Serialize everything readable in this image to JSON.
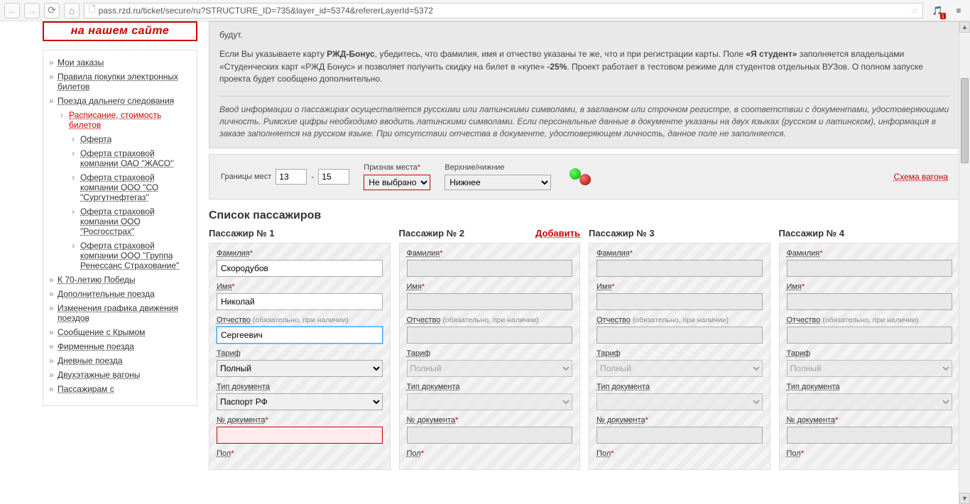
{
  "browser": {
    "url": "pass.rzd.ru/ticket/secure/ru?STRUCTURE_ID=735&layer_id=5374&refererLayerId=5372"
  },
  "banner": "на нашем сайте",
  "sidebar": {
    "items": [
      {
        "label": "Мои заказы"
      },
      {
        "label": "Правила покупки электронных билетов"
      },
      {
        "label": "Поезда дальнего следования",
        "children": [
          {
            "label": "Расписание, стоимость билетов",
            "active": true,
            "children": [
              {
                "label": "Оферта"
              },
              {
                "label": "Оферта страховой компании ОАО \"ЖАСО\""
              },
              {
                "label": "Оферта страховой компании ООО \"СО \"Сургутнефтегаз\""
              },
              {
                "label": "Оферта страховой компании ООО \"Росгосстрах\""
              },
              {
                "label": "Оферта страховой компании ООО \"Группа Ренессанс Страхование\""
              }
            ]
          }
        ]
      },
      {
        "label": "К 70-летию Победы"
      },
      {
        "label": "Дополнительные поезда"
      },
      {
        "label": "Изменения графика движения поездов"
      },
      {
        "label": "Сообщение с Крымом"
      },
      {
        "label": "Фирменные поезда"
      },
      {
        "label": "Дневные поезда"
      },
      {
        "label": "Двухэтажные вагоны"
      },
      {
        "label": "Пассажирам с"
      }
    ]
  },
  "info": {
    "line0": "будут.",
    "para1_a": "Если Вы указываете карту ",
    "para1_b": "РЖД-Бонус",
    "para1_c": ", убедитесь, что фамилия, имя и отчество указаны те же, что и при регистрации карты. Поле ",
    "para1_d": "«Я студент»",
    "para1_e": " заполняется владельцами «Студенческих карт «РЖД Бонус» и позволяет получить скидку на билет в «купе» ",
    "para1_f": "-25%",
    "para1_g": ". Проект работает в тестовом режиме для студентов отдельных ВУЗов. О полном запуске проекта будет сообщено дополнительно.",
    "italic": "Ввод информации о пассажирах осуществляется русскими или латинскими символами, в заглавном или строчном регистре, в соответствии с документами, удостоверяющими личность. Римские цифры необходимо вводить латинскими символами. Если персональные данные в документе указаны на двух языках (русском и латинском), информация в заказе заполняется на русском языке. При отсутствии отчества в документе, удостоверяющем личность, данное поле не заполняется."
  },
  "seat": {
    "bounds_label": "Границы мест",
    "from": "13",
    "dash": "-",
    "to": "15",
    "sign_label": "Признак места",
    "sign_value": "Не выбрано",
    "upper_label": "Верхние/нижние",
    "upper_value": "Нижнее",
    "scheme": "Схема вагона"
  },
  "pax": {
    "title": "Список пассажиров",
    "labels": {
      "surname": "Фамилия",
      "name": "Имя",
      "patronymic": "Отчество",
      "patronymic_hint": "(обязательно, при наличии)",
      "tariff": "Тариф",
      "doctype": "Тип документа",
      "docnum": "№ документа",
      "gender": "Пол"
    },
    "tariff_value": "Полный",
    "doctype_value": "Паспорт РФ",
    "add": "Добавить",
    "cols": [
      {
        "head": "Пассажир № 1",
        "surname": "Скородубов",
        "name": "Николай",
        "patronymic": "Сергеевич",
        "active": true
      },
      {
        "head": "Пассажир № 2",
        "add": true
      },
      {
        "head": "Пассажир № 3"
      },
      {
        "head": "Пассажир № 4"
      }
    ]
  }
}
